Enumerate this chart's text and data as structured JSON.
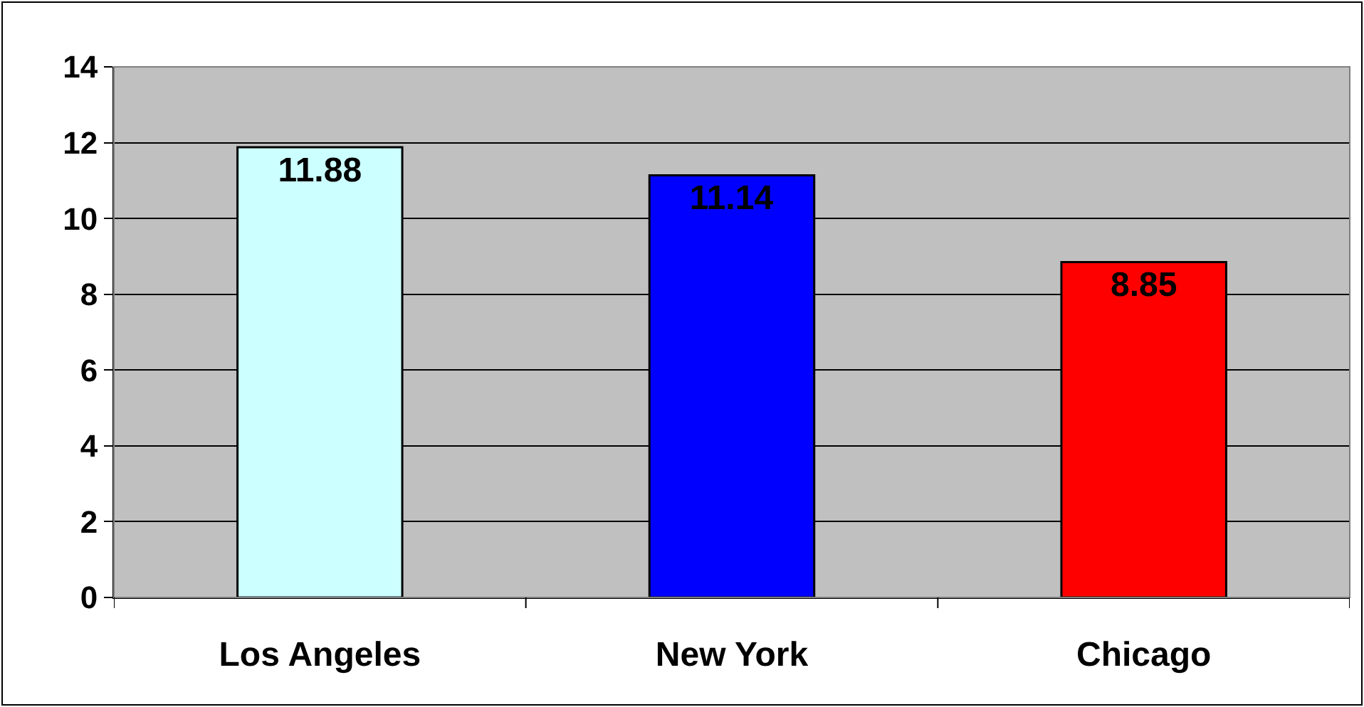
{
  "chart_data": {
    "type": "bar",
    "categories": [
      "Los Angeles",
      "New York",
      "Chicago"
    ],
    "values": [
      11.88,
      11.14,
      8.85
    ],
    "colors": [
      "#ccffff",
      "#0000ff",
      "#ff0000"
    ],
    "ylim": [
      0,
      14
    ],
    "yticks": [
      0,
      2,
      4,
      6,
      8,
      10,
      12,
      14
    ],
    "grid": "y",
    "data_labels": true
  }
}
